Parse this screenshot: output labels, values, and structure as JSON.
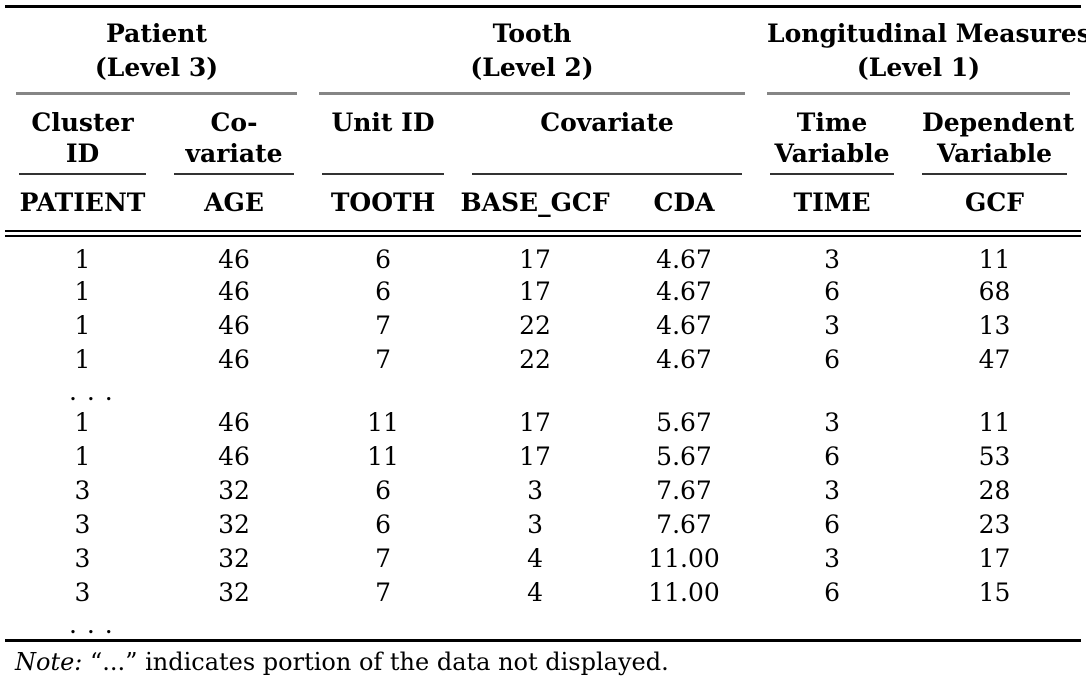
{
  "table": {
    "groups": [
      {
        "title": "Patient",
        "subtitle": "(Level 3)"
      },
      {
        "title": "Tooth",
        "subtitle": "(Level 2)"
      },
      {
        "title": "Longitudinal Measures",
        "subtitle": "(Level 1)"
      }
    ],
    "subheaders": [
      {
        "line1": "Cluster",
        "line2": "ID"
      },
      {
        "line1": "Co-",
        "line2": "variate"
      },
      {
        "line1": "Unit ID",
        "line2": ""
      },
      {
        "line1": "Covariate",
        "line2": ""
      },
      {
        "line1": "Time",
        "line2": "Variable"
      },
      {
        "line1": "Dependent",
        "line2": "Variable"
      }
    ],
    "columns": [
      "PATIENT",
      "AGE",
      "TOOTH",
      "BASE_GCF",
      "CDA",
      "TIME",
      "GCF"
    ],
    "rows": [
      {
        "type": "data",
        "cells": [
          "1",
          "46",
          "6",
          "17",
          "4.67",
          "3",
          "11"
        ]
      },
      {
        "type": "data",
        "cells": [
          "1",
          "46",
          "6",
          "17",
          "4.67",
          "6",
          "68"
        ]
      },
      {
        "type": "data",
        "cells": [
          "1",
          "46",
          "7",
          "22",
          "4.67",
          "3",
          "13"
        ]
      },
      {
        "type": "data",
        "cells": [
          "1",
          "46",
          "7",
          "22",
          "4.67",
          "6",
          "47"
        ]
      },
      {
        "type": "ellipsis",
        "label": ". . ."
      },
      {
        "type": "data",
        "cells": [
          "1",
          "46",
          "11",
          "17",
          "5.67",
          "3",
          "11"
        ]
      },
      {
        "type": "data",
        "cells": [
          "1",
          "46",
          "11",
          "17",
          "5.67",
          "6",
          "53"
        ]
      },
      {
        "type": "data",
        "cells": [
          "3",
          "32",
          "6",
          "3",
          "7.67",
          "3",
          "28"
        ]
      },
      {
        "type": "data",
        "cells": [
          "3",
          "32",
          "6",
          "3",
          "7.67",
          "6",
          "23"
        ]
      },
      {
        "type": "data",
        "cells": [
          "3",
          "32",
          "7",
          "4",
          "11.00",
          "3",
          "17"
        ]
      },
      {
        "type": "data",
        "cells": [
          "3",
          "32",
          "7",
          "4",
          "11.00",
          "6",
          "15"
        ]
      },
      {
        "type": "ellipsis",
        "label": ". . ."
      }
    ],
    "note": {
      "label": "Note:",
      "text": "“...” indicates portion of the data not displayed."
    }
  },
  "colors": {
    "text": "#000000",
    "group_rule": "#858585",
    "sub_rule": "#333333",
    "major_rule": "#000000",
    "background": "#ffffff"
  }
}
